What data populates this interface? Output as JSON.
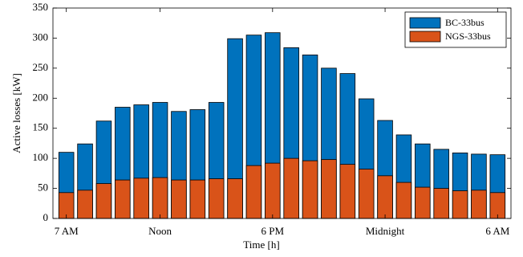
{
  "chart_data": {
    "type": "bar",
    "xlabel": "Time [h]",
    "ylabel": "Active losses [kW]",
    "categories": [
      "7 AM",
      null,
      null,
      null,
      null,
      "Noon",
      null,
      null,
      null,
      null,
      null,
      "6 PM",
      null,
      null,
      null,
      null,
      null,
      "Midnight",
      null,
      null,
      null,
      null,
      null,
      "6 AM"
    ],
    "series": [
      {
        "name": "BC-33bus",
        "color": "#0072bd",
        "values": [
          110,
          124,
          162,
          185,
          189,
          193,
          178,
          181,
          193,
          299,
          305,
          309,
          284,
          272,
          250,
          241,
          199,
          163,
          139,
          124,
          115,
          109,
          107,
          106
        ]
      },
      {
        "name": "NGS-33bus",
        "color": "#d95319",
        "values": [
          43,
          47,
          58,
          64,
          67,
          68,
          64,
          64,
          66,
          66,
          88,
          92,
          100,
          96,
          98,
          90,
          82,
          71,
          60,
          52,
          50,
          46,
          47,
          43
        ]
      }
    ],
    "ylim": [
      0,
      350
    ],
    "yticks": [
      0,
      50,
      100,
      150,
      200,
      250,
      300,
      350
    ],
    "legend": "upper right",
    "grid": false
  }
}
